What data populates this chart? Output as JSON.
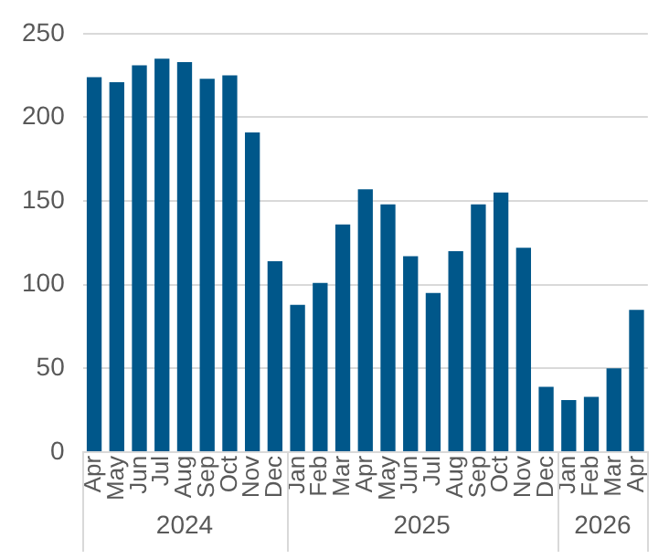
{
  "chart_data": {
    "type": "bar",
    "categories": [
      "Apr",
      "May",
      "Jun",
      "Jul",
      "Aug",
      "Sep",
      "Oct",
      "Nov",
      "Dec",
      "Jan",
      "Feb",
      "Mar",
      "Apr",
      "May",
      "Jun",
      "Jul",
      "Aug",
      "Sep",
      "Oct",
      "Nov",
      "Dec",
      "Jan",
      "Feb",
      "Mar",
      "Apr"
    ],
    "values": [
      224,
      221,
      231,
      235,
      233,
      223,
      225,
      191,
      114,
      88,
      101,
      136,
      157,
      148,
      117,
      95,
      120,
      148,
      155,
      122,
      39,
      31,
      33,
      50,
      85
    ],
    "color": "#00578a",
    "ylim": [
      0,
      250
    ],
    "yticks": [
      0,
      50,
      100,
      150,
      200,
      250
    ],
    "grid": "y",
    "annotations": [
      "2024",
      "2025",
      "2026"
    ]
  }
}
